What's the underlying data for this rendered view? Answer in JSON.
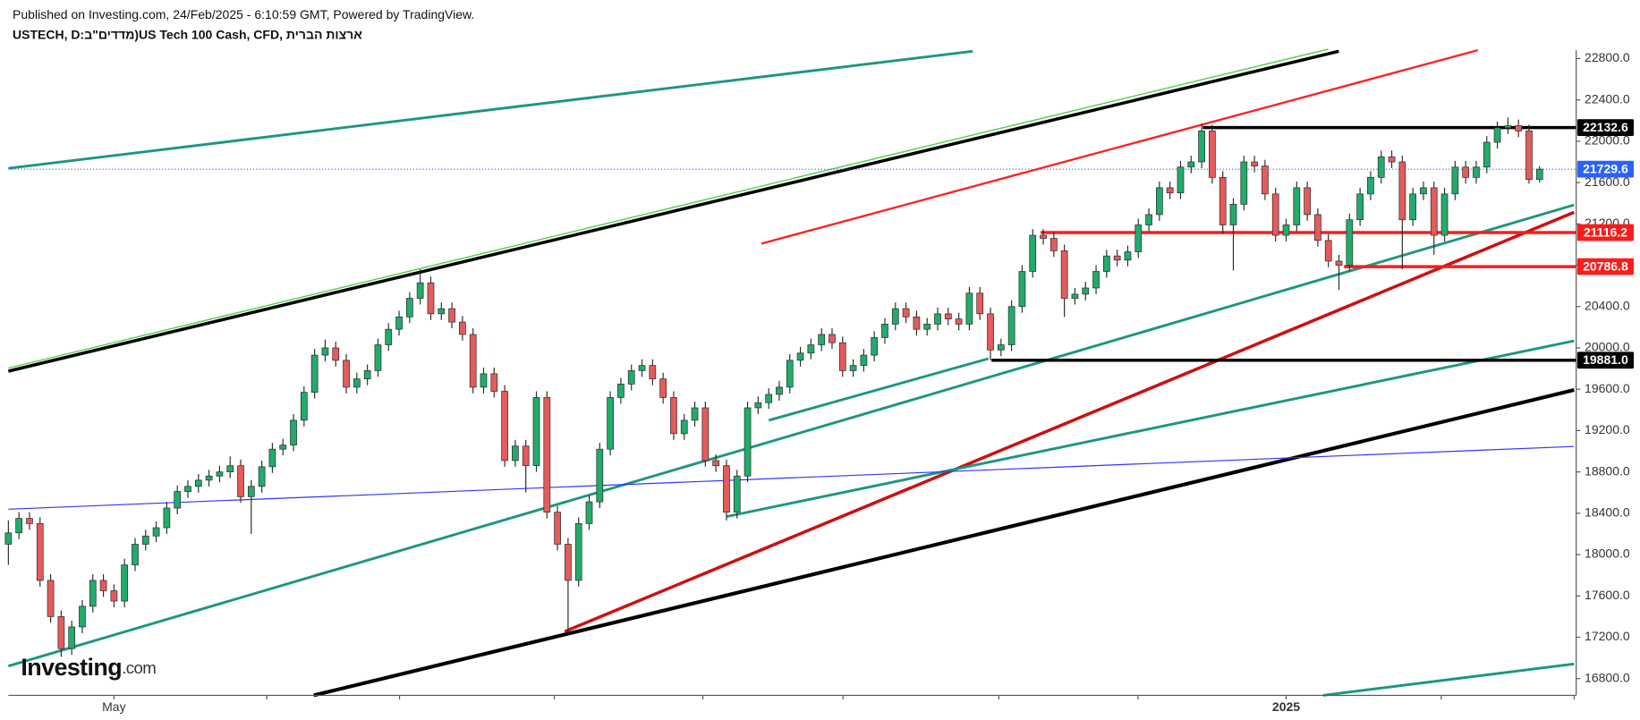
{
  "header": {
    "published": "Published on Investing.com, 24/Feb/2025 - 6:10:59 GMT, Powered by TradingView.",
    "symbol": "USTECH, D:מדדים\"ב)US Tech 100 Cash, CFD, ארצות הברית",
    "logo": "Investing",
    "logo_suffix": ".com"
  },
  "chart_data": {
    "type": "candlestick",
    "categories": [
      null,
      null,
      null,
      null,
      null,
      null,
      null,
      null,
      null,
      null,
      "May",
      null,
      null,
      null,
      null,
      null,
      null,
      null,
      null,
      null,
      null,
      null,
      null,
      null,
      null,
      null,
      null,
      null,
      null,
      null,
      null,
      null,
      null,
      null,
      null,
      null,
      null,
      null,
      null,
      null,
      null,
      null,
      null,
      null,
      null,
      null,
      null,
      null,
      null,
      null,
      null,
      null,
      null,
      null,
      null,
      null,
      null,
      null,
      null,
      null,
      null,
      null,
      null,
      null,
      null,
      null,
      null,
      null,
      null,
      null,
      null,
      null,
      null,
      null,
      null,
      null,
      null,
      null,
      null,
      null,
      null,
      null,
      null,
      null,
      null,
      null,
      null,
      null,
      null,
      null,
      null,
      null,
      null,
      null,
      null,
      null,
      null,
      null,
      null,
      null,
      null,
      null,
      null,
      null,
      null,
      null,
      null,
      null,
      null,
      null,
      null,
      null,
      null,
      null,
      null,
      null,
      null,
      null,
      null,
      null,
      null,
      "2025",
      null,
      null,
      null,
      null,
      null,
      null,
      null,
      null,
      null,
      null,
      null,
      null,
      null,
      null,
      null,
      null,
      null,
      null,
      null,
      null,
      null,
      null,
      null,
      null
    ],
    "open": [
      18100,
      18210,
      18350,
      18300,
      17750,
      17400,
      17090,
      17300,
      17500,
      17750,
      17650,
      17550,
      17900,
      18100,
      18180,
      18260,
      18450,
      18610,
      18660,
      18720,
      18760,
      18800,
      18860,
      18560,
      18660,
      18850,
      19020,
      19060,
      19300,
      19570,
      19930,
      20000,
      19880,
      19620,
      19700,
      19780,
      20030,
      20180,
      20300,
      20480,
      20630,
      20330,
      20380,
      20250,
      20130,
      19620,
      19750,
      19580,
      18910,
      19050,
      18860,
      19520,
      18410,
      18100,
      17750,
      18300,
      18510,
      19020,
      19520,
      19650,
      19780,
      19830,
      19700,
      19520,
      19170,
      19300,
      19420,
      18910,
      18860,
      18410,
      18760,
      19420,
      19470,
      19550,
      19620,
      19880,
      19950,
      20030,
      20130,
      20050,
      19780,
      19830,
      19930,
      20100,
      20230,
      20380,
      20300,
      20180,
      20230,
      20330,
      20280,
      20230,
      20530,
      20330,
      19980,
      20030,
      20400,
      20740,
      21090,
      21060,
      20940,
      20480,
      20520,
      20580,
      20740,
      20890,
      20850,
      20930,
      21190,
      21290,
      21550,
      21500,
      21750,
      21800,
      22100,
      21650,
      21190,
      21390,
      21800,
      21760,
      21490,
      21090,
      21190,
      21550,
      21290,
      21040,
      20840,
      20800,
      21240,
      21490,
      21650,
      21850,
      21800,
      21240,
      21490,
      21550,
      21090,
      21490,
      21750,
      21650,
      21750,
      21990,
      22130,
      22150,
      22100,
      21630
    ],
    "high": [
      18330,
      18410,
      18410,
      18360,
      17810,
      17460,
      17360,
      17560,
      17810,
      17810,
      17710,
      17960,
      18160,
      18240,
      18320,
      18510,
      18670,
      18720,
      18780,
      18820,
      18860,
      18950,
      18920,
      18720,
      18910,
      19080,
      19120,
      19360,
      19630,
      19990,
      20080,
      20060,
      19940,
      19760,
      19840,
      20090,
      20240,
      20360,
      20540,
      20760,
      20690,
      20440,
      20440,
      20310,
      20190,
      19810,
      19810,
      19640,
      19110,
      19110,
      19580,
      19580,
      18470,
      18160,
      18360,
      18570,
      19080,
      19580,
      19710,
      19840,
      19890,
      19890,
      19760,
      19580,
      19360,
      19480,
      19480,
      18970,
      18920,
      18820,
      19480,
      19530,
      19610,
      19680,
      19940,
      20010,
      20090,
      20190,
      20190,
      20110,
      19890,
      19990,
      20160,
      20290,
      20440,
      20440,
      20360,
      20290,
      20390,
      20390,
      20340,
      20590,
      20590,
      20390,
      20090,
      20460,
      20800,
      21150,
      21150,
      21120,
      21000,
      20580,
      20640,
      20800,
      20950,
      20950,
      20990,
      21250,
      21350,
      21610,
      21610,
      21810,
      21860,
      22170,
      22160,
      21710,
      21450,
      21860,
      21860,
      21820,
      21550,
      21250,
      21610,
      21610,
      21350,
      21100,
      20900,
      21300,
      21550,
      21710,
      21910,
      21910,
      21860,
      21550,
      21610,
      21610,
      21550,
      21810,
      21810,
      21810,
      22050,
      22190,
      22230,
      22210,
      22160,
      21760
    ],
    "low": [
      17900,
      18150,
      18240,
      17690,
      17340,
      17010,
      17030,
      17240,
      17440,
      17590,
      17490,
      17490,
      17840,
      18040,
      18120,
      18200,
      18390,
      18550,
      18600,
      18660,
      18700,
      18740,
      18500,
      18200,
      18600,
      18790,
      18960,
      19000,
      19240,
      19510,
      19870,
      19820,
      19560,
      19560,
      19640,
      19720,
      19970,
      20120,
      20240,
      20420,
      20270,
      20270,
      20190,
      20070,
      19560,
      19560,
      19520,
      18850,
      18850,
      18600,
      18800,
      18350,
      18040,
      17240,
      17690,
      18240,
      18450,
      18960,
      19460,
      19590,
      19720,
      19640,
      19460,
      19110,
      19110,
      19240,
      18850,
      18800,
      18330,
      18350,
      18700,
      19360,
      19410,
      19490,
      19560,
      19820,
      19890,
      19970,
      19990,
      19720,
      19720,
      19770,
      19870,
      20040,
      20170,
      20240,
      20120,
      20120,
      20170,
      20220,
      20170,
      20170,
      20270,
      19880,
      19920,
      19970,
      20340,
      20680,
      21000,
      20880,
      20300,
      20420,
      20460,
      20520,
      20680,
      20790,
      20790,
      20870,
      21130,
      21230,
      21440,
      21440,
      21690,
      21740,
      21590,
      21100,
      20750,
      21330,
      21700,
      21430,
      21030,
      21030,
      21130,
      21230,
      20980,
      20780,
      20560,
      20740,
      21180,
      21430,
      21590,
      21740,
      20760,
      21180,
      21430,
      20900,
      21030,
      21430,
      21590,
      21590,
      21690,
      21930,
      22070,
      22040,
      21590,
      21600
    ],
    "close": [
      18210,
      18350,
      18300,
      17750,
      17400,
      17090,
      17300,
      17500,
      17750,
      17650,
      17550,
      17900,
      18100,
      18180,
      18260,
      18450,
      18610,
      18660,
      18720,
      18760,
      18800,
      18860,
      18560,
      18660,
      18850,
      19020,
      19060,
      19300,
      19570,
      19930,
      20000,
      19880,
      19620,
      19700,
      19780,
      20030,
      20180,
      20300,
      20480,
      20630,
      20330,
      20380,
      20250,
      20130,
      19620,
      19750,
      19580,
      18910,
      19050,
      18860,
      19520,
      18410,
      18100,
      17750,
      18300,
      18510,
      19020,
      19520,
      19650,
      19780,
      19830,
      19700,
      19520,
      19170,
      19300,
      19420,
      18910,
      18860,
      18410,
      18760,
      19420,
      19470,
      19550,
      19620,
      19880,
      19950,
      20030,
      20130,
      20050,
      19780,
      19830,
      19930,
      20100,
      20230,
      20380,
      20300,
      20180,
      20230,
      20330,
      20280,
      20230,
      20530,
      20330,
      19980,
      20030,
      20400,
      20740,
      21090,
      21060,
      20940,
      20480,
      20520,
      20580,
      20740,
      20890,
      20850,
      20930,
      21190,
      21290,
      21550,
      21500,
      21750,
      21800,
      22100,
      21650,
      21190,
      21390,
      21800,
      21760,
      21490,
      21090,
      21190,
      21550,
      21290,
      21040,
      20840,
      20800,
      21240,
      21490,
      21650,
      21850,
      21800,
      21240,
      21490,
      21550,
      21090,
      21490,
      21750,
      21650,
      21750,
      21990,
      22130,
      22150,
      22100,
      21630,
      21730
    ],
    "up_color": "#22ab6a",
    "down_color": "#e45b5b",
    "ylim": [
      16638,
      22881
    ],
    "yticks": [
      {
        "value": 16800,
        "label": "16800.0"
      },
      {
        "value": 17200,
        "label": "17200.0"
      },
      {
        "value": 17600,
        "label": "17600.0"
      },
      {
        "value": 18000,
        "label": "18000.0"
      },
      {
        "value": 18400,
        "label": "18400.0"
      },
      {
        "value": 18800,
        "label": "18800.0"
      },
      {
        "value": 19200,
        "label": "19200.0"
      },
      {
        "value": 19600,
        "label": "19600.0"
      },
      {
        "value": 20000,
        "label": "20000.0"
      },
      {
        "value": 20400,
        "label": "20400.0"
      },
      {
        "value": 20800,
        "label": "20800.0"
      },
      {
        "value": 21200,
        "label": "21200.0"
      },
      {
        "value": 21600,
        "label": "21600.0"
      },
      {
        "value": 22000,
        "label": "22000.0"
      },
      {
        "value": 22400,
        "label": "22400.0"
      },
      {
        "value": 22800,
        "label": "22800.0"
      }
    ],
    "levels": [
      {
        "value": 22132.6,
        "color": "#000000"
      },
      {
        "value": 21729.6,
        "color": "#2962ff"
      },
      {
        "value": 21116.2,
        "color": "#ff1a1a"
      },
      {
        "value": 20786.8,
        "color": "#ff1a1a"
      },
      {
        "value": 19881,
        "label": "19881.0",
        "color": "#000000"
      }
    ]
  }
}
